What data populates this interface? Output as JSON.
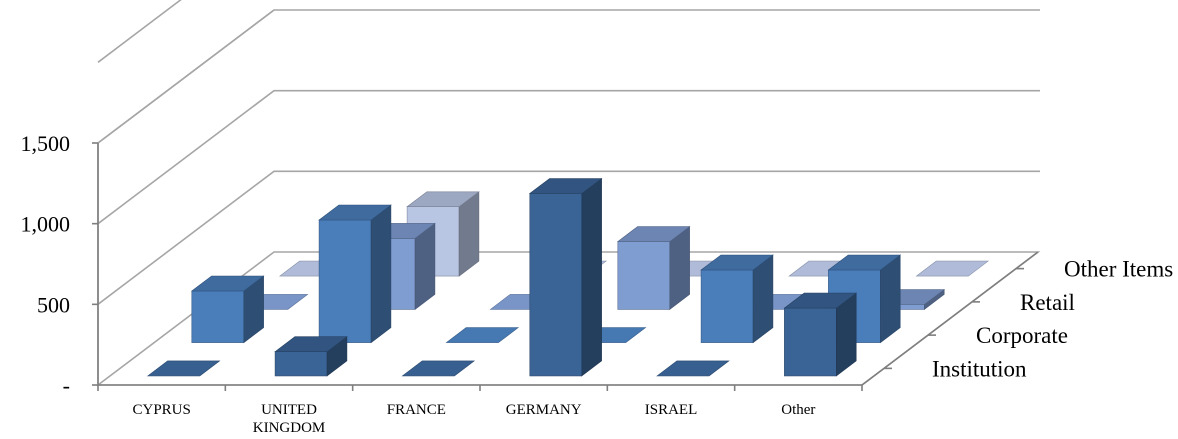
{
  "chart_data": {
    "type": "bar",
    "subtype": "3d-column",
    "categories": [
      "CYPRUS",
      "UNITED KINGDOM",
      "FRANCE",
      "GERMANY",
      "ISRAEL",
      "Other"
    ],
    "series": [
      {
        "name": "Institution",
        "values": [
          0,
          150,
          0,
          1130,
          0,
          420
        ],
        "color": "#3a6496"
      },
      {
        "name": "Corporate",
        "values": [
          320,
          760,
          0,
          0,
          450,
          450
        ],
        "color": "#4a7ebb"
      },
      {
        "name": "Retail",
        "values": [
          0,
          440,
          0,
          420,
          0,
          30
        ],
        "color": "#7f9dd1"
      },
      {
        "name": "Other Items",
        "values": [
          0,
          430,
          0,
          0,
          0,
          0
        ],
        "color": "#b8c5e3"
      }
    ],
    "yticks": [
      "-",
      "500",
      "1,000",
      "1,500"
    ],
    "ylim": [
      0,
      1500
    ],
    "grid": true,
    "legend": "depth-axis-right"
  }
}
